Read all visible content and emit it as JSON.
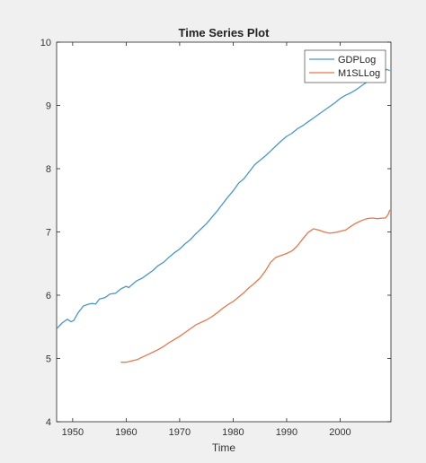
{
  "chart_data": {
    "type": "line",
    "title": "Time Series Plot",
    "xlabel": "Time",
    "ylabel": "",
    "xlim": [
      1947,
      2009.5
    ],
    "ylim": [
      4,
      10
    ],
    "xticks": [
      1950,
      1960,
      1970,
      1980,
      1990,
      2000
    ],
    "yticks": [
      4,
      5,
      6,
      7,
      8,
      9,
      10
    ],
    "grid": false,
    "legend": "top-right",
    "series": [
      {
        "name": "GDPLog",
        "color": "#4a96d1",
        "x": [
          1947.0,
          1948.0,
          1949.0,
          1949.7,
          1950.2,
          1951.0,
          1952.0,
          1953.0,
          1953.7,
          1954.3,
          1955.0,
          1956.0,
          1957.0,
          1958.0,
          1959.0,
          1960.0,
          1960.5,
          1961.0,
          1962.0,
          1963.0,
          1964.0,
          1965.0,
          1966.0,
          1967.0,
          1968.0,
          1969.0,
          1970.0,
          1971.0,
          1972.0,
          1973.0,
          1974.0,
          1975.0,
          1976.0,
          1977.0,
          1978.0,
          1979.0,
          1980.0,
          1981.0,
          1982.0,
          1983.0,
          1984.0,
          1985.0,
          1986.0,
          1987.0,
          1988.0,
          1989.0,
          1990.0,
          1991.0,
          1992.0,
          1993.0,
          1994.0,
          1995.0,
          1996.0,
          1997.0,
          1998.0,
          1999.0,
          2000.0,
          2001.0,
          2002.0,
          2003.0,
          2004.0,
          2005.0,
          2006.0,
          2007.0,
          2008.0,
          2008.7,
          2009.3
        ],
        "values": [
          5.47,
          5.56,
          5.62,
          5.58,
          5.6,
          5.72,
          5.83,
          5.86,
          5.87,
          5.86,
          5.94,
          5.96,
          6.02,
          6.03,
          6.1,
          6.14,
          6.12,
          6.16,
          6.23,
          6.27,
          6.33,
          6.39,
          6.47,
          6.52,
          6.6,
          6.67,
          6.73,
          6.81,
          6.88,
          6.97,
          7.05,
          7.13,
          7.23,
          7.33,
          7.44,
          7.55,
          7.65,
          7.77,
          7.84,
          7.95,
          8.06,
          8.13,
          8.2,
          8.28,
          8.36,
          8.44,
          8.51,
          8.56,
          8.63,
          8.68,
          8.74,
          8.8,
          8.86,
          8.92,
          8.98,
          9.04,
          9.11,
          9.16,
          9.2,
          9.25,
          9.31,
          9.37,
          9.43,
          9.49,
          9.53,
          9.57,
          9.55
        ]
      },
      {
        "name": "M1SLLog",
        "color": "#e8784d",
        "x": [
          1959.0,
          1960.0,
          1961.0,
          1962.0,
          1963.0,
          1964.0,
          1965.0,
          1966.0,
          1967.0,
          1968.0,
          1969.0,
          1970.0,
          1971.0,
          1972.0,
          1973.0,
          1974.0,
          1975.0,
          1976.0,
          1977.0,
          1978.0,
          1979.0,
          1980.0,
          1981.0,
          1982.0,
          1983.0,
          1984.0,
          1985.0,
          1986.0,
          1987.0,
          1988.0,
          1989.0,
          1990.0,
          1991.0,
          1992.0,
          1993.0,
          1994.0,
          1995.0,
          1996.0,
          1997.0,
          1998.0,
          1999.0,
          2000.0,
          2001.0,
          2002.0,
          2003.0,
          2004.0,
          2005.0,
          2006.0,
          2007.0,
          2008.0,
          2008.5,
          2009.0,
          2009.3
        ],
        "values": [
          4.94,
          4.94,
          4.96,
          4.98,
          5.02,
          5.06,
          5.1,
          5.14,
          5.19,
          5.25,
          5.3,
          5.35,
          5.41,
          5.47,
          5.53,
          5.57,
          5.61,
          5.66,
          5.72,
          5.79,
          5.85,
          5.9,
          5.97,
          6.04,
          6.12,
          6.19,
          6.27,
          6.38,
          6.52,
          6.6,
          6.63,
          6.66,
          6.7,
          6.78,
          6.89,
          6.99,
          7.05,
          7.03,
          7.0,
          6.98,
          6.99,
          7.01,
          7.03,
          7.09,
          7.14,
          7.18,
          7.21,
          7.22,
          7.21,
          7.22,
          7.22,
          7.28,
          7.35
        ]
      }
    ]
  }
}
